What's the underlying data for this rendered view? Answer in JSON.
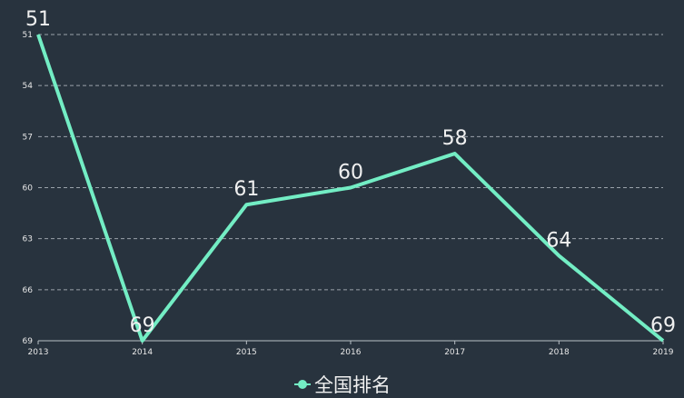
{
  "chart_data": {
    "type": "line",
    "categories": [
      "2013",
      "2014",
      "2015",
      "2016",
      "2017",
      "2018",
      "2019"
    ],
    "series": [
      {
        "name": "全国排名",
        "color": "#73edc4",
        "values": [
          51,
          69,
          61,
          60,
          58,
          64,
          69
        ]
      }
    ],
    "ylim": [
      51,
      69
    ],
    "yticks": [
      51,
      54,
      57,
      60,
      63,
      66,
      69
    ],
    "inverse": true,
    "grid": true,
    "legend": "bottom"
  }
}
